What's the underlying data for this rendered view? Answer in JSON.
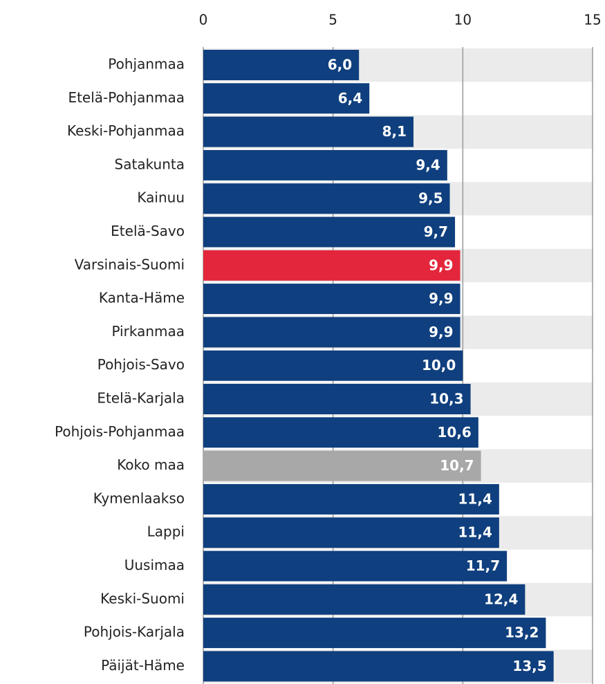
{
  "chart_data": {
    "type": "bar",
    "orientation": "horizontal",
    "categories": [
      "Pohjanmaa",
      "Etelä-Pohjanmaa",
      "Keski-Pohjanmaa",
      "Satakunta",
      "Kainuu",
      "Etelä-Savo",
      "Varsinais-Suomi",
      "Kanta-Häme",
      "Pirkanmaa",
      "Pohjois-Savo",
      "Etelä-Karjala",
      "Pohjois-Pohjanmaa",
      "Koko maa",
      "Kymenlaakso",
      "Lappi",
      "Uusimaa",
      "Keski-Suomi",
      "Pohjois-Karjala",
      "Päijät-Häme"
    ],
    "values": [
      6.0,
      6.4,
      8.1,
      9.4,
      9.5,
      9.7,
      9.9,
      9.9,
      9.9,
      10.0,
      10.3,
      10.6,
      10.7,
      11.4,
      11.4,
      11.7,
      12.4,
      13.2,
      13.5
    ],
    "value_labels": [
      "6,0",
      "6,4",
      "8,1",
      "9,4",
      "9,5",
      "9,7",
      "9,9",
      "9,9",
      "9,9",
      "10,0",
      "10,3",
      "10,6",
      "10,7",
      "11,4",
      "11,4",
      "11,7",
      "12,4",
      "13,2",
      "13,5"
    ],
    "colors": [
      "#0f3f7e",
      "#0f3f7e",
      "#0f3f7e",
      "#0f3f7e",
      "#0f3f7e",
      "#0f3f7e",
      "#e3263b",
      "#0f3f7e",
      "#0f3f7e",
      "#0f3f7e",
      "#0f3f7e",
      "#0f3f7e",
      "#a8a8a8",
      "#0f3f7e",
      "#0f3f7e",
      "#0f3f7e",
      "#0f3f7e",
      "#0f3f7e",
      "#0f3f7e"
    ],
    "xlim": [
      0,
      15
    ],
    "xticks": [
      0,
      5,
      10,
      15
    ],
    "grid": true
  }
}
